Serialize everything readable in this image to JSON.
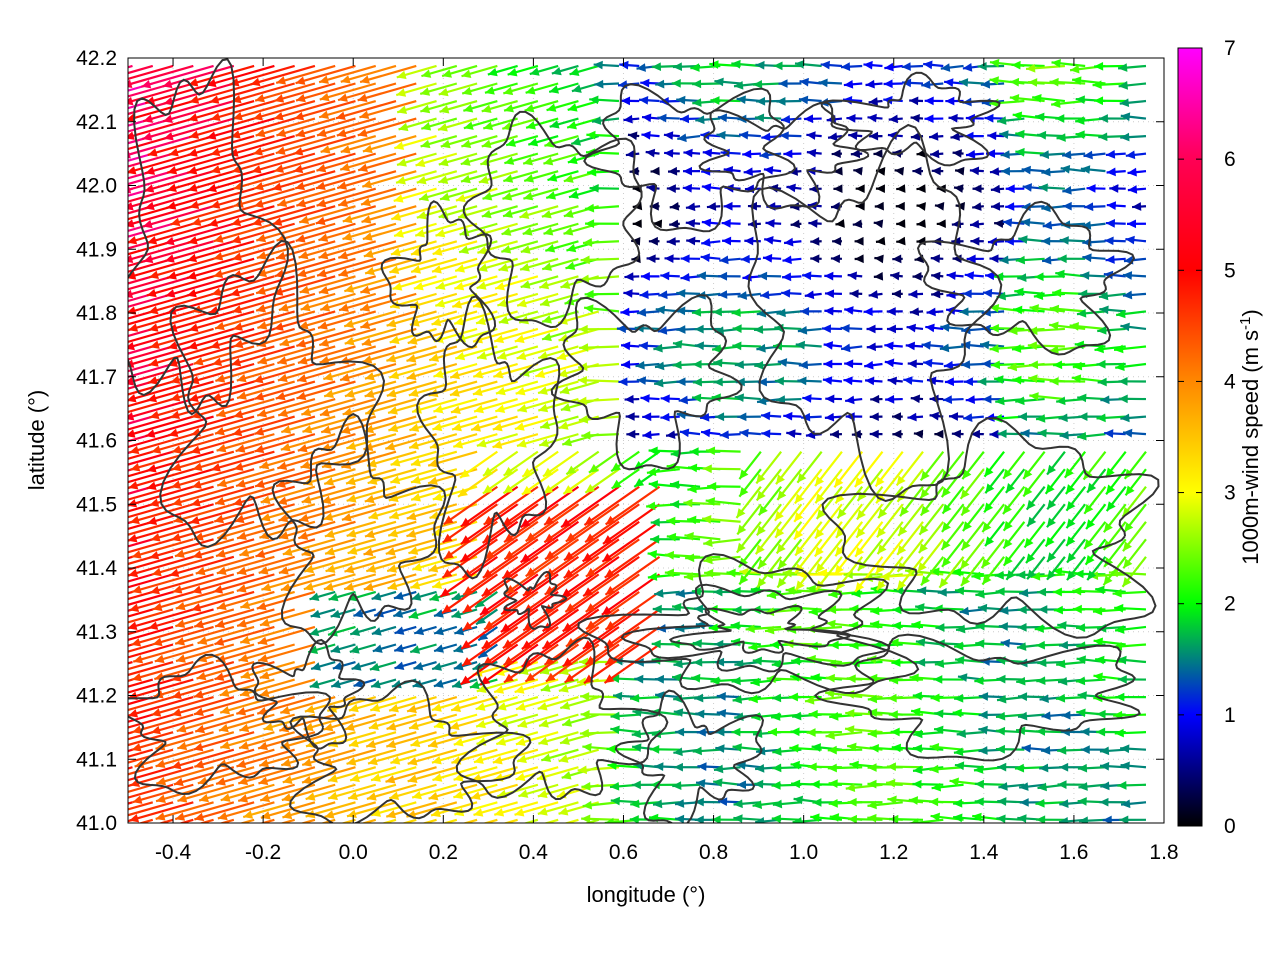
{
  "chart_data": {
    "type": "vector-field",
    "xlabel": "longitude (°)",
    "ylabel": "latitude (°)",
    "colorbar_label": "1000m-wind speed (m s⁻¹)",
    "colorbar_label_parts": {
      "main": "1000m-wind speed (m s",
      "sup": "-1",
      "end": ")"
    },
    "xlim": [
      -0.5,
      1.8
    ],
    "ylim": [
      41.0,
      42.2
    ],
    "x_ticks": [
      -0.4,
      -0.2,
      0.0,
      0.2,
      0.4,
      0.6,
      0.8,
      1.0,
      1.2,
      1.4,
      1.6,
      1.8
    ],
    "y_ticks": [
      41.0,
      41.1,
      41.2,
      41.3,
      41.4,
      41.5,
      41.6,
      41.7,
      41.8,
      41.9,
      42.0,
      42.1,
      42.2
    ],
    "x_tick_labels": [
      "-0.4",
      "-0.2",
      "0.0",
      "0.2",
      "0.4",
      "0.6",
      "0.8",
      "1.0",
      "1.2",
      "1.4",
      "1.6",
      "1.8"
    ],
    "y_tick_labels": [
      "41.0",
      "41.1",
      "41.2",
      "41.3",
      "41.4",
      "41.5",
      "41.6",
      "41.7",
      "41.8",
      "41.9",
      "42.0",
      "42.1",
      "42.2"
    ],
    "colorbar_range": [
      0,
      7
    ],
    "colorbar_ticks": [
      "0",
      "1",
      "2",
      "3",
      "4",
      "5",
      "6",
      "7"
    ],
    "colormap": [
      "#000000",
      "#0000ff",
      "#00ff00",
      "#ffff00",
      "#ff8800",
      "#ff0000",
      "#ff00ff"
    ],
    "grid": true,
    "wind_regions": [
      {
        "region": "west",
        "lon_range": [
          -0.5,
          0.2
        ],
        "lat_range": [
          41.0,
          42.2
        ],
        "speed_range": [
          4,
          7
        ],
        "direction": "from east-southeast, pointing west-northwest"
      },
      {
        "region": "northeast",
        "lon_range": [
          0.6,
          1.8
        ],
        "lat_range": [
          41.6,
          42.2
        ],
        "speed_range": [
          0,
          2
        ],
        "direction": "westward"
      },
      {
        "region": "southeast",
        "lon_range": [
          0.6,
          1.8
        ],
        "lat_range": [
          41.0,
          41.4
        ],
        "speed_range": [
          1.5,
          3
        ],
        "direction": "westward"
      },
      {
        "region": "central",
        "lon_range": [
          0.2,
          1.4
        ],
        "lat_range": [
          41.3,
          41.6
        ],
        "speed_range": [
          2,
          6
        ],
        "direction": "northwestward"
      }
    ],
    "contours": "terrain elevation contours (dark grey, unlabeled)"
  }
}
